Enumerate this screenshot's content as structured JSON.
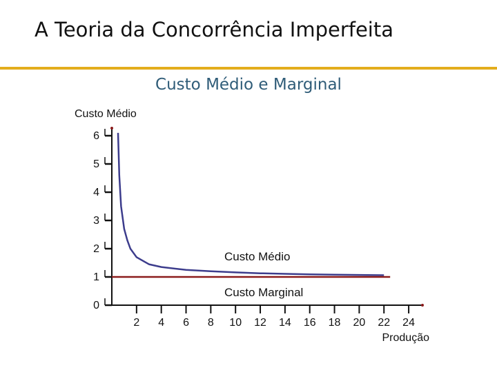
{
  "slide": {
    "title": "A Teoria da Concorrência Imperfeita",
    "subtitle": "Custo Médio e Marginal",
    "rule_color": "#e3ad1c"
  },
  "chart_data": {
    "type": "line",
    "title": "Custo Médio e Marginal",
    "ylabel": "Custo Médio",
    "xlabel": "Produção",
    "xlim": [
      0,
      25
    ],
    "ylim": [
      0,
      6
    ],
    "x_ticks": [
      2,
      4,
      6,
      8,
      10,
      12,
      14,
      16,
      18,
      20,
      22,
      24
    ],
    "y_ticks": [
      0,
      1,
      2,
      3,
      4,
      5,
      6
    ],
    "series": [
      {
        "name": "Custo Médio",
        "color": "#3c3c8c",
        "x": [
          0.5,
          0.6,
          0.75,
          1,
          1.25,
          1.5,
          2,
          3,
          4,
          6,
          8,
          10,
          12,
          14,
          16,
          18,
          20,
          22
        ],
        "y": [
          6.1,
          4.6,
          3.5,
          2.7,
          2.3,
          2.0,
          1.7,
          1.45,
          1.35,
          1.25,
          1.2,
          1.16,
          1.13,
          1.11,
          1.09,
          1.08,
          1.07,
          1.06
        ]
      },
      {
        "name": "Custo Marginal",
        "color": "#8b1a1a",
        "x": [
          0,
          22.5
        ],
        "y": [
          1,
          1
        ]
      }
    ]
  }
}
